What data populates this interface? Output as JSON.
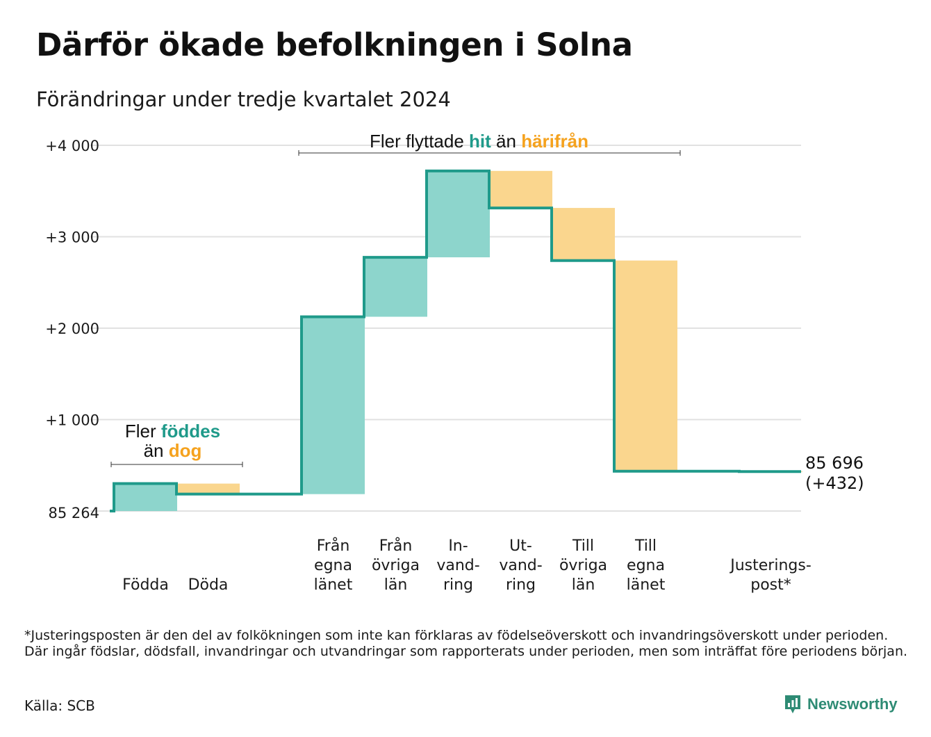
{
  "title": "Därför ökade befolkningen i Solna",
  "subtitle": "Förändringar under tredje kvartalet 2024",
  "footnote": "*Justeringsposten är den del av folkökningen som inte kan förklaras av födelseöverskott och invandringsöverskott under perioden. Där ingår födslar, dödsfall, invandringar och utvandringar som rapporterats under perioden, men som inträffat före periodens början.",
  "source": "Källa: SCB",
  "brand": "Newsworthy",
  "colors": {
    "increase_fill": "#8dd5cc",
    "decrease_fill": "#fad68e",
    "step_line": "#1f9a8a",
    "highlight_in": "#1f9a8a",
    "highlight_out": "#f5a21e",
    "grid": "#e1e1e1",
    "brand": "#2e8b74"
  },
  "chart_data": {
    "type": "waterfall",
    "start_value": 85264,
    "start_label": "85 264",
    "end_value": 85696,
    "end_label": "85 696",
    "end_change_label": "(+432)",
    "ylim": [
      0,
      4000
    ],
    "yticks": [
      {
        "value": 1000,
        "label": "+1 000"
      },
      {
        "value": 2000,
        "label": "+2 000"
      },
      {
        "value": 3000,
        "label": "+3 000"
      },
      {
        "value": 4000,
        "label": "+4 000"
      }
    ],
    "grid": true,
    "items": [
      {
        "key": "fodda",
        "label": [
          "Födda"
        ],
        "value": 300
      },
      {
        "key": "doda",
        "label": [
          "Döda"
        ],
        "value": -115
      },
      {
        "key": "gap",
        "label": [],
        "value": 0,
        "spacer": true
      },
      {
        "key": "fran_egna",
        "label": [
          "Från",
          "egna",
          "länet"
        ],
        "value": 1940
      },
      {
        "key": "fran_ovriga",
        "label": [
          "Från",
          "övriga",
          "län"
        ],
        "value": 650
      },
      {
        "key": "invandring",
        "label": [
          "In-",
          "vand-",
          "ring"
        ],
        "value": 945
      },
      {
        "key": "utvandring",
        "label": [
          "Ut-",
          "vand-",
          "ring"
        ],
        "value": -405
      },
      {
        "key": "till_ovriga",
        "label": [
          "Till",
          "övriga",
          "län"
        ],
        "value": -575
      },
      {
        "key": "till_egna",
        "label": [
          "Till",
          "egna",
          "länet"
        ],
        "value": -2305
      },
      {
        "key": "gap2",
        "label": [],
        "value": 0,
        "spacer": true
      },
      {
        "key": "justering",
        "label": [
          "Justerings-",
          "post*"
        ],
        "value": -3
      }
    ],
    "annotations": [
      {
        "key": "births",
        "line1": [
          "Fler ",
          "föddes"
        ],
        "line2": [
          "än ",
          "dog"
        ],
        "span": [
          "fodda",
          "doda"
        ]
      },
      {
        "key": "migration",
        "line1": [
          "Fler flyttade ",
          "hit",
          " än ",
          "härifrån"
        ],
        "span": [
          "fran_egna",
          "till_egna"
        ]
      }
    ]
  }
}
